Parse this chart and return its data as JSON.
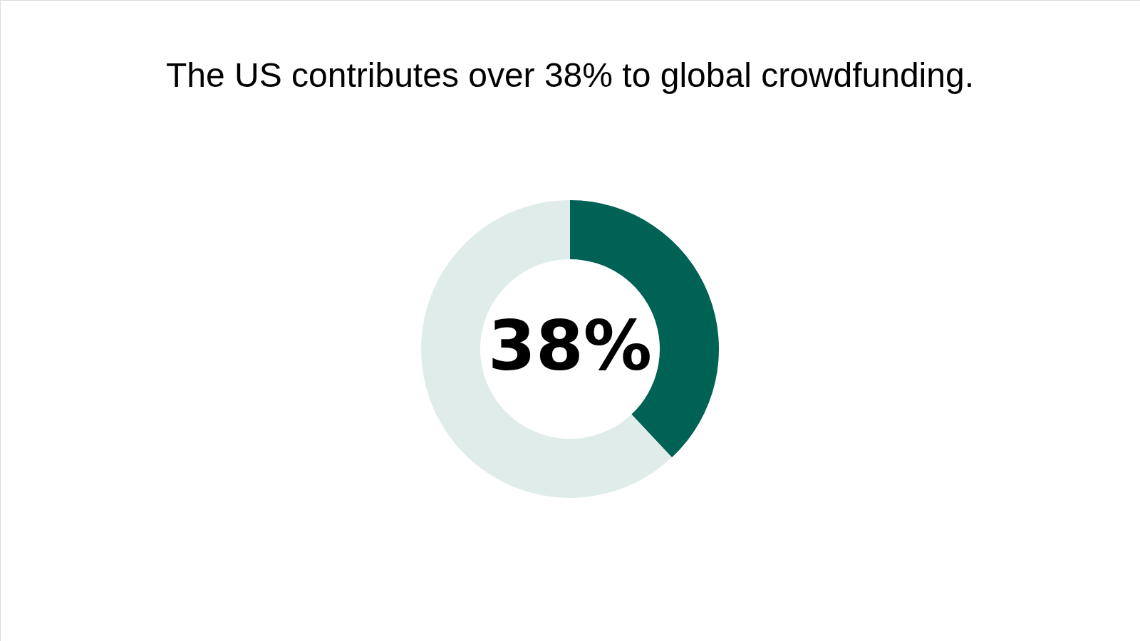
{
  "chart_data": {
    "type": "donut",
    "title": "The US contributes over 38% to global crowdfunding.",
    "categories": [
      null,
      null
    ],
    "values": [
      38,
      62
    ],
    "colors": [
      "#006155",
      "#e0ecea"
    ],
    "value_labels": [
      "38%",
      null
    ]
  }
}
